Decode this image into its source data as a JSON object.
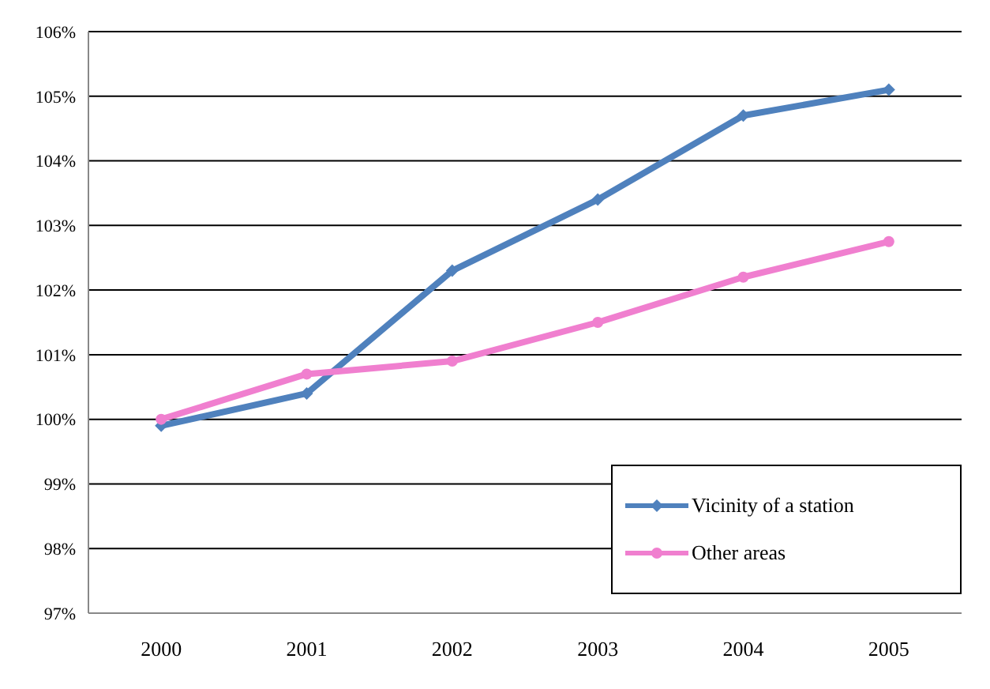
{
  "chart_data": {
    "type": "line",
    "categories": [
      "2000",
      "2001",
      "2002",
      "2003",
      "2004",
      "2005"
    ],
    "series": [
      {
        "name": "Vicinity of a station",
        "color": "#4f81bd",
        "marker": "diamond",
        "values": [
          99.9,
          100.4,
          102.3,
          103.4,
          104.7,
          105.1
        ]
      },
      {
        "name": "Other areas",
        "color": "#f07fcf",
        "marker": "circle",
        "values": [
          100,
          100.7,
          100.9,
          101.5,
          102.2,
          102.75
        ]
      }
    ],
    "ylim": [
      97,
      106
    ],
    "yticks": [
      {
        "value": 97,
        "label": "97%"
      },
      {
        "value": 98,
        "label": "98%"
      },
      {
        "value": 99,
        "label": "99%"
      },
      {
        "value": 100,
        "label": "100%"
      },
      {
        "value": 101,
        "label": "101%"
      },
      {
        "value": 102,
        "label": "102%"
      },
      {
        "value": 103,
        "label": "103%"
      },
      {
        "value": 104,
        "label": "104%"
      },
      {
        "value": 105,
        "label": "105%"
      },
      {
        "value": 106,
        "label": "106%"
      }
    ],
    "grid": "y",
    "legend": "bottom right",
    "line_style": "solid"
  }
}
